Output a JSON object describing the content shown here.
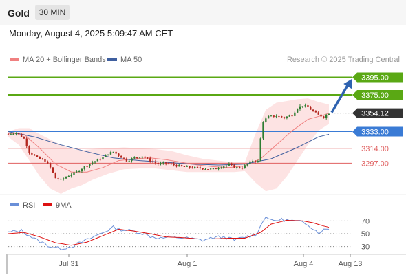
{
  "header": {
    "title": "Gold",
    "timeframe": "30 MIN",
    "datetime": "Monday, August 4, 2025 5:09:47 AM CET"
  },
  "legend": {
    "ma20": "MA 20 + Bollinger Bands",
    "ma50": "MA 50",
    "credit": "Research © 2025 Trading Central"
  },
  "rsi_legend": {
    "rsi": "RSI",
    "ma9": "9MA"
  },
  "colors": {
    "resistance": "#5aa814",
    "pivot": "#3a7bd5",
    "support": "#e06060",
    "price_tag": "#333333",
    "ma20": "#f08080",
    "ma50": "#3f5f9f",
    "band_fill": "#fde3e3",
    "arrow": "#2e62b0",
    "rsi": "#6a8fd8",
    "rsi_ma": "#dd1111",
    "candle_up": "#2e7d32",
    "candle_down": "#b3261e"
  },
  "chart_data": [
    {
      "type": "candlestick",
      "x_labels": [
        "Jul 31",
        "Aug 1",
        "Aug 4",
        "Aug 13"
      ],
      "ylim": [
        3262,
        3408
      ],
      "levels": [
        {
          "label": "3395.00",
          "value": 3395,
          "kind": "resistance"
        },
        {
          "label": "3375.00",
          "value": 3375,
          "kind": "resistance"
        },
        {
          "label": "3354.12",
          "value": 3354.12,
          "kind": "price"
        },
        {
          "label": "3333.00",
          "value": 3333,
          "kind": "pivot"
        },
        {
          "label": "3314.00",
          "value": 3314,
          "kind": "support"
        },
        {
          "label": "3297.00",
          "value": 3297,
          "kind": "support"
        }
      ],
      "anchors": [
        [
          0,
          3330
        ],
        [
          3,
          3332
        ],
        [
          6,
          3325
        ],
        [
          8,
          3310
        ],
        [
          11,
          3303
        ],
        [
          14,
          3300
        ],
        [
          16,
          3292
        ],
        [
          18,
          3280
        ],
        [
          20,
          3278
        ],
        [
          23,
          3283
        ],
        [
          26,
          3287
        ],
        [
          29,
          3293
        ],
        [
          32,
          3298
        ],
        [
          35,
          3302
        ],
        [
          38,
          3308
        ],
        [
          40,
          3310
        ],
        [
          42,
          3306
        ],
        [
          45,
          3300
        ],
        [
          48,
          3303
        ],
        [
          51,
          3305
        ],
        [
          54,
          3300
        ],
        [
          57,
          3296
        ],
        [
          60,
          3297
        ],
        [
          63,
          3295
        ],
        [
          66,
          3293
        ],
        [
          70,
          3292
        ],
        [
          74,
          3291
        ],
        [
          78,
          3290
        ],
        [
          81,
          3293
        ],
        [
          84,
          3295
        ],
        [
          87,
          3292
        ],
        [
          89,
          3292
        ],
        [
          91,
          3296
        ],
        [
          93,
          3300
        ],
        [
          95,
          3299
        ],
        [
          96,
          3325
        ],
        [
          97,
          3345
        ],
        [
          99,
          3350
        ],
        [
          102,
          3351
        ],
        [
          105,
          3349
        ],
        [
          108,
          3352
        ],
        [
          110,
          3360
        ],
        [
          112,
          3363
        ],
        [
          114,
          3361
        ],
        [
          116,
          3356
        ],
        [
          118,
          3352
        ],
        [
          120,
          3350
        ],
        [
          122,
          3354
        ]
      ],
      "candle_count": 123,
      "ma20": [
        [
          0,
          3331
        ],
        [
          6,
          3330
        ],
        [
          12,
          3314
        ],
        [
          18,
          3296
        ],
        [
          24,
          3287
        ],
        [
          30,
          3287
        ],
        [
          36,
          3292
        ],
        [
          42,
          3300
        ],
        [
          48,
          3302
        ],
        [
          54,
          3303
        ],
        [
          60,
          3301
        ],
        [
          66,
          3298
        ],
        [
          72,
          3295
        ],
        [
          78,
          3293
        ],
        [
          84,
          3292
        ],
        [
          90,
          3294
        ],
        [
          96,
          3302
        ],
        [
          102,
          3318
        ],
        [
          108,
          3334
        ],
        [
          114,
          3347
        ],
        [
          120,
          3352
        ],
        [
          122,
          3354
        ]
      ],
      "ma50": [
        [
          0,
          3333
        ],
        [
          10,
          3327
        ],
        [
          20,
          3318
        ],
        [
          30,
          3310
        ],
        [
          40,
          3303
        ],
        [
          50,
          3300
        ],
        [
          60,
          3298
        ],
        [
          70,
          3296
        ],
        [
          80,
          3295
        ],
        [
          90,
          3296
        ],
        [
          100,
          3302
        ],
        [
          110,
          3315
        ],
        [
          118,
          3327
        ],
        [
          122,
          3330
        ]
      ],
      "bb_upper": [
        [
          0,
          3333
        ],
        [
          4,
          3337
        ],
        [
          8,
          3337
        ],
        [
          12,
          3330
        ],
        [
          16,
          3324
        ],
        [
          20,
          3318
        ],
        [
          24,
          3313
        ],
        [
          28,
          3312
        ],
        [
          32,
          3313
        ],
        [
          38,
          3314
        ],
        [
          44,
          3315
        ],
        [
          50,
          3314
        ],
        [
          56,
          3313
        ],
        [
          62,
          3311
        ],
        [
          68,
          3306
        ],
        [
          74,
          3302
        ],
        [
          80,
          3300
        ],
        [
          86,
          3298
        ],
        [
          90,
          3298
        ],
        [
          94,
          3330
        ],
        [
          98,
          3358
        ],
        [
          102,
          3366
        ],
        [
          106,
          3368
        ],
        [
          110,
          3370
        ],
        [
          114,
          3371
        ],
        [
          118,
          3367
        ],
        [
          122,
          3364
        ]
      ],
      "bb_lower": [
        [
          0,
          3327
        ],
        [
          4,
          3318
        ],
        [
          8,
          3300
        ],
        [
          12,
          3282
        ],
        [
          16,
          3268
        ],
        [
          20,
          3262
        ],
        [
          24,
          3268
        ],
        [
          28,
          3272
        ],
        [
          32,
          3278
        ],
        [
          38,
          3285
        ],
        [
          44,
          3290
        ],
        [
          50,
          3291
        ],
        [
          56,
          3291
        ],
        [
          62,
          3289
        ],
        [
          68,
          3287
        ],
        [
          74,
          3287
        ],
        [
          80,
          3287
        ],
        [
          86,
          3287
        ],
        [
          90,
          3288
        ],
        [
          94,
          3275
        ],
        [
          98,
          3265
        ],
        [
          102,
          3268
        ],
        [
          106,
          3282
        ],
        [
          110,
          3300
        ],
        [
          114,
          3318
        ],
        [
          118,
          3334
        ],
        [
          122,
          3342
        ]
      ],
      "projection": {
        "from": [
          3354.12
        ],
        "to": [
          3395
        ]
      }
    },
    {
      "type": "line",
      "title": "RSI",
      "ylim": [
        20,
        80
      ],
      "y_ticks": [
        70,
        50,
        30
      ],
      "series": [
        {
          "name": "RSI",
          "points": [
            [
              0,
              52
            ],
            [
              5,
              55
            ],
            [
              10,
              42
            ],
            [
              16,
              30
            ],
            [
              20,
              27
            ],
            [
              24,
              30
            ],
            [
              28,
              37
            ],
            [
              32,
              44
            ],
            [
              36,
              52
            ],
            [
              40,
              60
            ],
            [
              42,
              57
            ],
            [
              46,
              55
            ],
            [
              50,
              52
            ],
            [
              54,
              46
            ],
            [
              58,
              43
            ],
            [
              62,
              45
            ],
            [
              66,
              44
            ],
            [
              70,
              42
            ],
            [
              74,
              40
            ],
            [
              78,
              44
            ],
            [
              82,
              45
            ],
            [
              86,
              40
            ],
            [
              90,
              45
            ],
            [
              94,
              48
            ],
            [
              96,
              62
            ],
            [
              98,
              78
            ],
            [
              100,
              70
            ],
            [
              104,
              72
            ],
            [
              108,
              70
            ],
            [
              112,
              68
            ],
            [
              114,
              65
            ],
            [
              116,
              58
            ],
            [
              118,
              52
            ],
            [
              120,
              56
            ],
            [
              122,
              58
            ]
          ]
        },
        {
          "name": "9MA",
          "points": [
            [
              0,
              50
            ],
            [
              6,
              52
            ],
            [
              12,
              45
            ],
            [
              18,
              36
            ],
            [
              24,
              32
            ],
            [
              30,
              37
            ],
            [
              36,
              47
            ],
            [
              42,
              57
            ],
            [
              48,
              54
            ],
            [
              54,
              50
            ],
            [
              60,
              45
            ],
            [
              66,
              44
            ],
            [
              72,
              42
            ],
            [
              78,
              42
            ],
            [
              84,
              43
            ],
            [
              90,
              43
            ],
            [
              96,
              52
            ],
            [
              100,
              65
            ],
            [
              106,
              71
            ],
            [
              112,
              70
            ],
            [
              116,
              67
            ],
            [
              120,
              62
            ],
            [
              122,
              60
            ]
          ]
        }
      ]
    }
  ]
}
